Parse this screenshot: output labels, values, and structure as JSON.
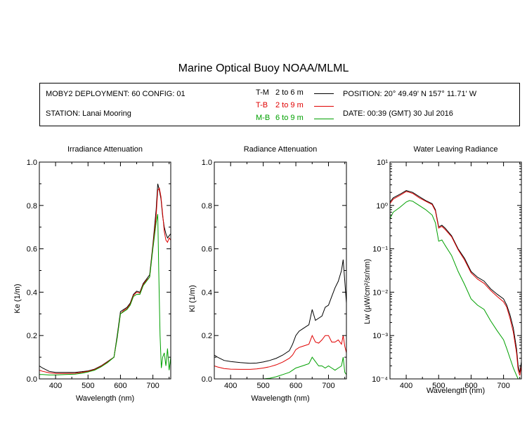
{
  "title": "Marine Optical Buoy NOAA/MLML",
  "info": {
    "deployment": "MOBY2 DEPLOYMENT: 60 CONFIG: 01",
    "station": "STATION: Lanai Mooring",
    "position": "POSITION: 20° 49.49' N   157° 11.71' W",
    "date": "DATE: 00:39 (GMT) 30 Jul 2016"
  },
  "legend": [
    {
      "tag": "T-M",
      "range": "2 to 6  m",
      "color": "#000000"
    },
    {
      "tag": "T-B",
      "range": "2 to 9  m",
      "color": "#e00000"
    },
    {
      "tag": "M-B",
      "range": "6 to 9  m",
      "color": "#00a000"
    }
  ],
  "chart_data": [
    {
      "type": "line",
      "title": "Irradiance Attenuation",
      "xlabel": "Wavelength (nm)",
      "ylabel": "Ke  (1/m)",
      "xlim": [
        350,
        755
      ],
      "ylim": [
        0,
        1.0
      ],
      "yscale": "linear",
      "xticks": [
        "400",
        "500",
        "600",
        "700"
      ],
      "yticks": [
        "0.0",
        "0.2",
        "0.4",
        "0.6",
        "0.8",
        "1.0"
      ],
      "series": [
        {
          "name": "T-M",
          "color": "#000000",
          "x": [
            350,
            360,
            380,
            400,
            430,
            460,
            480,
            500,
            520,
            540,
            560,
            580,
            590,
            600,
            610,
            620,
            630,
            640,
            650,
            660,
            670,
            680,
            690,
            700,
            710,
            715,
            720,
            725,
            730,
            735,
            740,
            745,
            750,
            755
          ],
          "y": [
            0.06,
            0.05,
            0.035,
            0.03,
            0.03,
            0.03,
            0.033,
            0.037,
            0.045,
            0.06,
            0.08,
            0.1,
            0.2,
            0.31,
            0.32,
            0.33,
            0.35,
            0.39,
            0.405,
            0.4,
            0.44,
            0.46,
            0.48,
            0.62,
            0.78,
            0.9,
            0.87,
            0.83,
            0.75,
            0.7,
            0.67,
            0.65,
            0.66,
            0.67
          ]
        },
        {
          "name": "T-B",
          "color": "#e00000",
          "x": [
            350,
            360,
            380,
            400,
            430,
            460,
            480,
            500,
            520,
            540,
            560,
            580,
            590,
            600,
            610,
            620,
            630,
            640,
            650,
            660,
            670,
            680,
            690,
            700,
            710,
            715,
            720,
            725,
            730,
            735,
            740,
            745,
            750,
            755
          ],
          "y": [
            0.04,
            0.035,
            0.028,
            0.025,
            0.025,
            0.026,
            0.03,
            0.035,
            0.043,
            0.058,
            0.078,
            0.1,
            0.19,
            0.3,
            0.315,
            0.325,
            0.345,
            0.385,
            0.4,
            0.395,
            0.435,
            0.455,
            0.47,
            0.61,
            0.75,
            0.87,
            0.88,
            0.84,
            0.76,
            0.68,
            0.64,
            0.63,
            0.65,
            0.64
          ]
        },
        {
          "name": "M-B",
          "color": "#00a000",
          "x": [
            350,
            360,
            380,
            400,
            430,
            460,
            480,
            500,
            520,
            540,
            560,
            580,
            590,
            600,
            610,
            620,
            630,
            640,
            650,
            660,
            670,
            680,
            690,
            700,
            710,
            715,
            718,
            722,
            726,
            730,
            735,
            740,
            745,
            750,
            755
          ],
          "y": [
            0.02,
            0.02,
            0.018,
            0.018,
            0.02,
            0.022,
            0.026,
            0.032,
            0.04,
            0.055,
            0.075,
            0.1,
            0.19,
            0.3,
            0.31,
            0.32,
            0.34,
            0.38,
            0.39,
            0.39,
            0.43,
            0.45,
            0.47,
            0.6,
            0.72,
            0.76,
            0.5,
            0.2,
            0.05,
            0.1,
            0.12,
            0.06,
            0.14,
            0.04,
            0.1
          ]
        }
      ]
    },
    {
      "type": "line",
      "title": "Radiance Attenuation",
      "xlabel": "Wavelength (nm)",
      "ylabel": "Kl  (1/m)",
      "xlim": [
        350,
        755
      ],
      "ylim": [
        0,
        1.0
      ],
      "yscale": "linear",
      "xticks": [
        "400",
        "500",
        "600",
        "700"
      ],
      "yticks": [
        "0.0",
        "0.2",
        "0.4",
        "0.6",
        "0.8",
        "1.0"
      ],
      "series": [
        {
          "name": "T-M",
          "color": "#000000",
          "x": [
            350,
            360,
            380,
            400,
            430,
            460,
            480,
            500,
            520,
            540,
            560,
            580,
            590,
            600,
            610,
            620,
            630,
            640,
            650,
            660,
            670,
            680,
            690,
            700,
            710,
            720,
            730,
            740,
            745,
            750,
            755
          ],
          "y": [
            0.11,
            0.1,
            0.085,
            0.08,
            0.075,
            0.072,
            0.073,
            0.078,
            0.085,
            0.095,
            0.11,
            0.13,
            0.16,
            0.2,
            0.22,
            0.23,
            0.24,
            0.25,
            0.32,
            0.27,
            0.28,
            0.29,
            0.33,
            0.34,
            0.38,
            0.42,
            0.45,
            0.5,
            0.55,
            0.45,
            0.35
          ]
        },
        {
          "name": "T-B",
          "color": "#e00000",
          "x": [
            350,
            360,
            380,
            400,
            430,
            460,
            480,
            500,
            520,
            540,
            560,
            580,
            590,
            600,
            610,
            620,
            630,
            640,
            650,
            660,
            670,
            680,
            690,
            700,
            710,
            720,
            730,
            740,
            745,
            750,
            755
          ],
          "y": [
            0.06,
            0.055,
            0.048,
            0.045,
            0.044,
            0.044,
            0.046,
            0.05,
            0.056,
            0.065,
            0.078,
            0.095,
            0.11,
            0.135,
            0.145,
            0.15,
            0.155,
            0.16,
            0.2,
            0.17,
            0.165,
            0.18,
            0.2,
            0.2,
            0.17,
            0.17,
            0.18,
            0.16,
            0.2,
            0.15,
            0.12
          ]
        },
        {
          "name": "M-B",
          "color": "#00a000",
          "x": [
            350,
            360,
            380,
            400,
            430,
            460,
            480,
            500,
            520,
            540,
            560,
            580,
            590,
            600,
            610,
            620,
            630,
            640,
            650,
            660,
            670,
            680,
            690,
            700,
            710,
            720,
            730,
            740,
            745,
            750,
            755
          ],
          "y": [
            0.0,
            0.0,
            0.0,
            0.0,
            0.0,
            0.0,
            0.0,
            0.0,
            0.003,
            0.01,
            0.02,
            0.03,
            0.04,
            0.05,
            0.055,
            0.06,
            0.065,
            0.07,
            0.1,
            0.08,
            0.06,
            0.06,
            0.05,
            0.06,
            0.05,
            0.04,
            0.05,
            0.06,
            0.1,
            0.03,
            0.02
          ]
        }
      ]
    },
    {
      "type": "line",
      "title": "Water Leaving Radiance",
      "xlabel": "Wavelength (nm)",
      "ylabel": "Lw  (µW/cm²/sr/nm)",
      "xlim": [
        350,
        755
      ],
      "ylim": [
        0.0001,
        10
      ],
      "yscale": "log",
      "xticks": [
        "400",
        "500",
        "600",
        "700"
      ],
      "yticks": [
        "10⁻⁴",
        "10⁻³",
        "10⁻²",
        "10⁻¹",
        "10⁰",
        "10¹"
      ],
      "series": [
        {
          "name": "T-M",
          "color": "#000000",
          "x": [
            350,
            360,
            380,
            400,
            410,
            420,
            440,
            460,
            480,
            490,
            500,
            510,
            520,
            540,
            560,
            580,
            600,
            620,
            640,
            660,
            680,
            700,
            710,
            720,
            730,
            740,
            745,
            750,
            755
          ],
          "y": [
            1.2,
            1.5,
            1.8,
            2.2,
            2.1,
            2.0,
            1.6,
            1.3,
            1.1,
            0.8,
            0.32,
            0.35,
            0.3,
            0.2,
            0.1,
            0.06,
            0.03,
            0.022,
            0.018,
            0.012,
            0.009,
            0.007,
            0.005,
            0.003,
            0.0015,
            0.0005,
            0.0002,
            0.00014,
            0.00025
          ]
        },
        {
          "name": "T-B",
          "color": "#e00000",
          "x": [
            350,
            360,
            380,
            400,
            410,
            420,
            440,
            460,
            480,
            490,
            500,
            510,
            520,
            540,
            560,
            580,
            600,
            620,
            640,
            660,
            680,
            700,
            710,
            720,
            730,
            740,
            745,
            750,
            755
          ],
          "y": [
            1.1,
            1.4,
            1.7,
            2.1,
            2.0,
            1.9,
            1.5,
            1.25,
            1.05,
            0.75,
            0.3,
            0.33,
            0.28,
            0.19,
            0.095,
            0.055,
            0.028,
            0.02,
            0.016,
            0.011,
            0.008,
            0.006,
            0.0045,
            0.0025,
            0.0012,
            0.0004,
            0.00016,
            0.00012,
            0.0002
          ]
        },
        {
          "name": "M-B",
          "color": "#00a000",
          "x": [
            350,
            360,
            380,
            400,
            410,
            420,
            440,
            460,
            480,
            490,
            500,
            510,
            520,
            540,
            560,
            580,
            600,
            620,
            640,
            660,
            680,
            700,
            710,
            720,
            730,
            740,
            745
          ],
          "y": [
            0.5,
            0.7,
            0.9,
            1.2,
            1.3,
            1.25,
            1.0,
            0.8,
            0.6,
            0.4,
            0.15,
            0.16,
            0.12,
            0.07,
            0.03,
            0.015,
            0.007,
            0.005,
            0.004,
            0.0022,
            0.0013,
            0.0008,
            0.0005,
            0.0003,
            0.00018,
            0.00012,
            0.0001
          ]
        }
      ]
    }
  ]
}
